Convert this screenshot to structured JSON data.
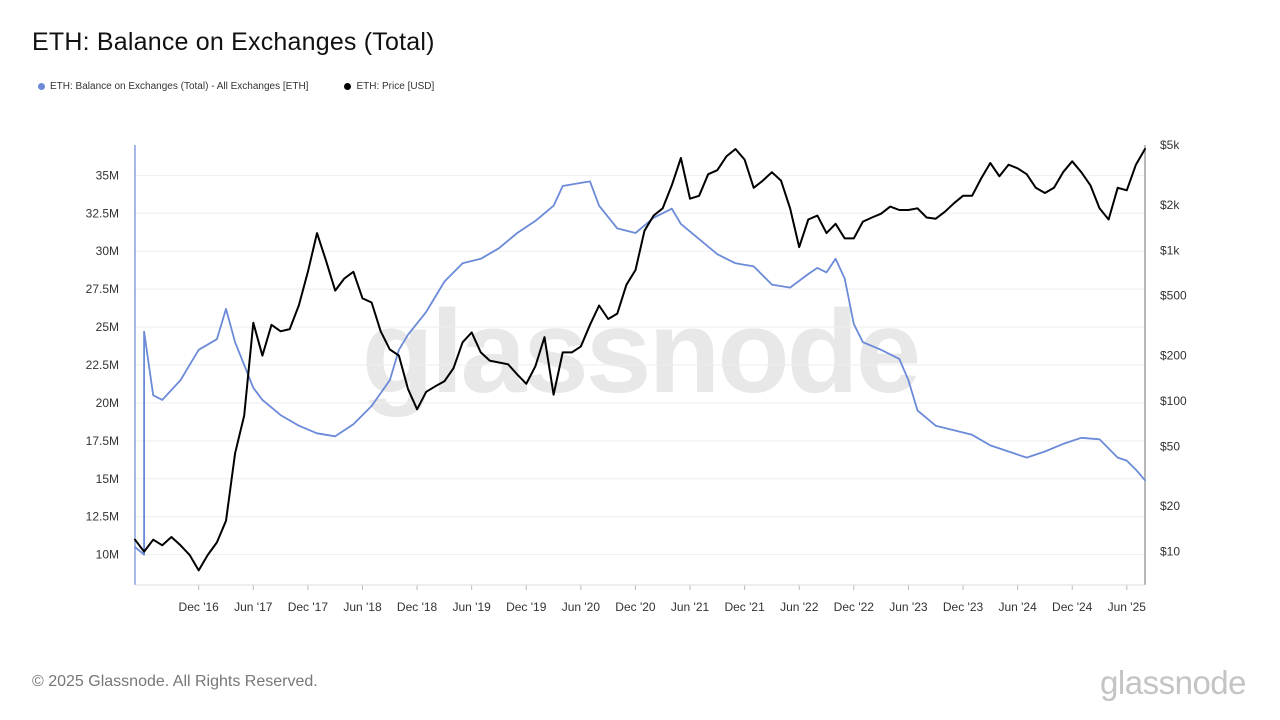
{
  "header": {
    "title": "ETH: Balance on Exchanges (Total)"
  },
  "legend": [
    {
      "label": "ETH: Balance on Exchanges (Total) - All Exchanges [ETH]",
      "color": "#6b8ad8"
    },
    {
      "label": "ETH: Price [USD]",
      "color": "#000000"
    }
  ],
  "watermark": "glassnode",
  "footer": {
    "copyright": "© 2025 Glassnode. All Rights Reserved.",
    "logo": "glassnode"
  },
  "chart_data": {
    "type": "line",
    "title": "ETH: Balance on Exchanges (Total)",
    "x_ticks": [
      "Dec '16",
      "Jun '17",
      "Dec '17",
      "Jun '18",
      "Dec '18",
      "Jun '19",
      "Dec '19",
      "Jun '20",
      "Dec '20",
      "Jun '21",
      "Dec '21",
      "Jun '22",
      "Dec '22",
      "Jun '23",
      "Dec '23",
      "Jun '24",
      "Dec '24",
      "Jun '25"
    ],
    "x_range": [
      "2016-05",
      "2025-08"
    ],
    "y_left": {
      "ticks": [
        "10M",
        "12.5M",
        "15M",
        "17.5M",
        "20M",
        "22.5M",
        "25M",
        "27.5M",
        "30M",
        "32.5M",
        "35M"
      ],
      "range": [
        8000000,
        37000000
      ]
    },
    "y_right": {
      "scale": "log",
      "ticks": [
        "$10",
        "$20",
        "$50",
        "$100",
        "$200",
        "$500",
        "$1k",
        "$2k",
        "$5k"
      ],
      "range": [
        6,
        5000
      ]
    },
    "grid": "horizontal",
    "legend_position": "top-left",
    "series": [
      {
        "name": "ETH: Balance on Exchanges (Total) - All Exchanges [ETH]",
        "axis": "left",
        "color": "#6b8ad8",
        "points": [
          [
            "2016-05",
            10500000
          ],
          [
            "2016-06",
            10000000
          ],
          [
            "2016-06",
            24700000
          ],
          [
            "2016-07",
            20500000
          ],
          [
            "2016-08",
            20200000
          ],
          [
            "2016-10",
            21500000
          ],
          [
            "2016-12",
            23500000
          ],
          [
            "2017-02",
            24200000
          ],
          [
            "2017-03",
            26200000
          ],
          [
            "2017-04",
            24000000
          ],
          [
            "2017-05",
            22500000
          ],
          [
            "2017-06",
            21000000
          ],
          [
            "2017-07",
            20200000
          ],
          [
            "2017-09",
            19200000
          ],
          [
            "2017-11",
            18500000
          ],
          [
            "2018-01",
            18000000
          ],
          [
            "2018-03",
            17800000
          ],
          [
            "2018-05",
            18600000
          ],
          [
            "2018-07",
            19800000
          ],
          [
            "2018-09",
            21500000
          ],
          [
            "2018-10",
            23500000
          ],
          [
            "2018-11",
            24500000
          ],
          [
            "2019-01",
            26000000
          ],
          [
            "2019-03",
            28000000
          ],
          [
            "2019-05",
            29200000
          ],
          [
            "2019-07",
            29500000
          ],
          [
            "2019-09",
            30200000
          ],
          [
            "2019-11",
            31200000
          ],
          [
            "2020-01",
            32000000
          ],
          [
            "2020-03",
            33000000
          ],
          [
            "2020-04",
            34300000
          ],
          [
            "2020-06",
            34500000
          ],
          [
            "2020-07",
            34600000
          ],
          [
            "2020-08",
            33000000
          ],
          [
            "2020-10",
            31500000
          ],
          [
            "2020-12",
            31200000
          ],
          [
            "2021-02",
            32200000
          ],
          [
            "2021-04",
            32800000
          ],
          [
            "2021-05",
            31800000
          ],
          [
            "2021-07",
            30800000
          ],
          [
            "2021-09",
            29800000
          ],
          [
            "2021-11",
            29200000
          ],
          [
            "2022-01",
            29000000
          ],
          [
            "2022-03",
            27800000
          ],
          [
            "2022-05",
            27600000
          ],
          [
            "2022-07",
            28500000
          ],
          [
            "2022-08",
            28900000
          ],
          [
            "2022-09",
            28600000
          ],
          [
            "2022-10",
            29500000
          ],
          [
            "2022-11",
            28200000
          ],
          [
            "2022-12",
            25200000
          ],
          [
            "2023-01",
            24000000
          ],
          [
            "2023-03",
            23500000
          ],
          [
            "2023-05",
            22900000
          ],
          [
            "2023-06",
            21500000
          ],
          [
            "2023-07",
            19500000
          ],
          [
            "2023-09",
            18500000
          ],
          [
            "2023-11",
            18200000
          ],
          [
            "2024-01",
            17900000
          ],
          [
            "2024-03",
            17200000
          ],
          [
            "2024-05",
            16800000
          ],
          [
            "2024-07",
            16400000
          ],
          [
            "2024-09",
            16800000
          ],
          [
            "2024-11",
            17300000
          ],
          [
            "2025-01",
            17700000
          ],
          [
            "2025-03",
            17600000
          ],
          [
            "2025-05",
            16400000
          ],
          [
            "2025-06",
            16200000
          ],
          [
            "2025-07",
            15600000
          ],
          [
            "2025-08",
            14900000
          ]
        ]
      },
      {
        "name": "ETH: Price [USD]",
        "axis": "right",
        "color": "#000000",
        "points": [
          [
            "2016-05",
            12
          ],
          [
            "2016-06",
            10
          ],
          [
            "2016-07",
            12
          ],
          [
            "2016-08",
            11
          ],
          [
            "2016-09",
            12.5
          ],
          [
            "2016-10",
            11
          ],
          [
            "2016-11",
            9.5
          ],
          [
            "2016-12",
            7.5
          ],
          [
            "2017-01",
            9.5
          ],
          [
            "2017-02",
            11.5
          ],
          [
            "2017-03",
            16
          ],
          [
            "2017-04",
            45
          ],
          [
            "2017-05",
            80
          ],
          [
            "2017-06",
            330
          ],
          [
            "2017-07",
            200
          ],
          [
            "2017-08",
            320
          ],
          [
            "2017-09",
            290
          ],
          [
            "2017-10",
            300
          ],
          [
            "2017-11",
            430
          ],
          [
            "2017-12",
            720
          ],
          [
            "2018-01",
            1300
          ],
          [
            "2018-02",
            850
          ],
          [
            "2018-03",
            540
          ],
          [
            "2018-04",
            650
          ],
          [
            "2018-05",
            720
          ],
          [
            "2018-06",
            480
          ],
          [
            "2018-07",
            450
          ],
          [
            "2018-08",
            290
          ],
          [
            "2018-09",
            220
          ],
          [
            "2018-10",
            200
          ],
          [
            "2018-11",
            120
          ],
          [
            "2018-12",
            88
          ],
          [
            "2019-01",
            115
          ],
          [
            "2019-02",
            125
          ],
          [
            "2019-03",
            135
          ],
          [
            "2019-04",
            165
          ],
          [
            "2019-05",
            245
          ],
          [
            "2019-06",
            285
          ],
          [
            "2019-07",
            210
          ],
          [
            "2019-08",
            185
          ],
          [
            "2019-09",
            180
          ],
          [
            "2019-10",
            175
          ],
          [
            "2019-11",
            150
          ],
          [
            "2019-12",
            130
          ],
          [
            "2020-01",
            170
          ],
          [
            "2020-02",
            265
          ],
          [
            "2020-03",
            110
          ],
          [
            "2020-04",
            210
          ],
          [
            "2020-05",
            210
          ],
          [
            "2020-06",
            230
          ],
          [
            "2020-07",
            320
          ],
          [
            "2020-08",
            430
          ],
          [
            "2020-09",
            350
          ],
          [
            "2020-10",
            380
          ],
          [
            "2020-11",
            590
          ],
          [
            "2020-12",
            740
          ],
          [
            "2021-01",
            1350
          ],
          [
            "2021-02",
            1700
          ],
          [
            "2021-03",
            1900
          ],
          [
            "2021-04",
            2700
          ],
          [
            "2021-05",
            4100
          ],
          [
            "2021-06",
            2200
          ],
          [
            "2021-07",
            2300
          ],
          [
            "2021-08",
            3200
          ],
          [
            "2021-09",
            3400
          ],
          [
            "2021-10",
            4200
          ],
          [
            "2021-11",
            4700
          ],
          [
            "2021-12",
            4000
          ],
          [
            "2022-01",
            2600
          ],
          [
            "2022-02",
            2900
          ],
          [
            "2022-03",
            3300
          ],
          [
            "2022-04",
            2900
          ],
          [
            "2022-05",
            1900
          ],
          [
            "2022-06",
            1050
          ],
          [
            "2022-07",
            1600
          ],
          [
            "2022-08",
            1700
          ],
          [
            "2022-09",
            1300
          ],
          [
            "2022-10",
            1500
          ],
          [
            "2022-11",
            1200
          ],
          [
            "2022-12",
            1200
          ],
          [
            "2023-01",
            1550
          ],
          [
            "2023-02",
            1650
          ],
          [
            "2023-03",
            1750
          ],
          [
            "2023-04",
            1950
          ],
          [
            "2023-05",
            1850
          ],
          [
            "2023-06",
            1850
          ],
          [
            "2023-07",
            1900
          ],
          [
            "2023-08",
            1650
          ],
          [
            "2023-09",
            1620
          ],
          [
            "2023-10",
            1800
          ],
          [
            "2023-11",
            2050
          ],
          [
            "2023-12",
            2300
          ],
          [
            "2024-01",
            2300
          ],
          [
            "2024-02",
            3000
          ],
          [
            "2024-03",
            3800
          ],
          [
            "2024-04",
            3100
          ],
          [
            "2024-05",
            3700
          ],
          [
            "2024-06",
            3500
          ],
          [
            "2024-07",
            3200
          ],
          [
            "2024-08",
            2600
          ],
          [
            "2024-09",
            2400
          ],
          [
            "2024-10",
            2600
          ],
          [
            "2024-11",
            3300
          ],
          [
            "2024-12",
            3900
          ],
          [
            "2025-01",
            3300
          ],
          [
            "2025-02",
            2700
          ],
          [
            "2025-03",
            1900
          ],
          [
            "2025-04",
            1600
          ],
          [
            "2025-05",
            2600
          ],
          [
            "2025-06",
            2500
          ],
          [
            "2025-07",
            3700
          ],
          [
            "2025-08",
            4700
          ]
        ]
      }
    ]
  }
}
